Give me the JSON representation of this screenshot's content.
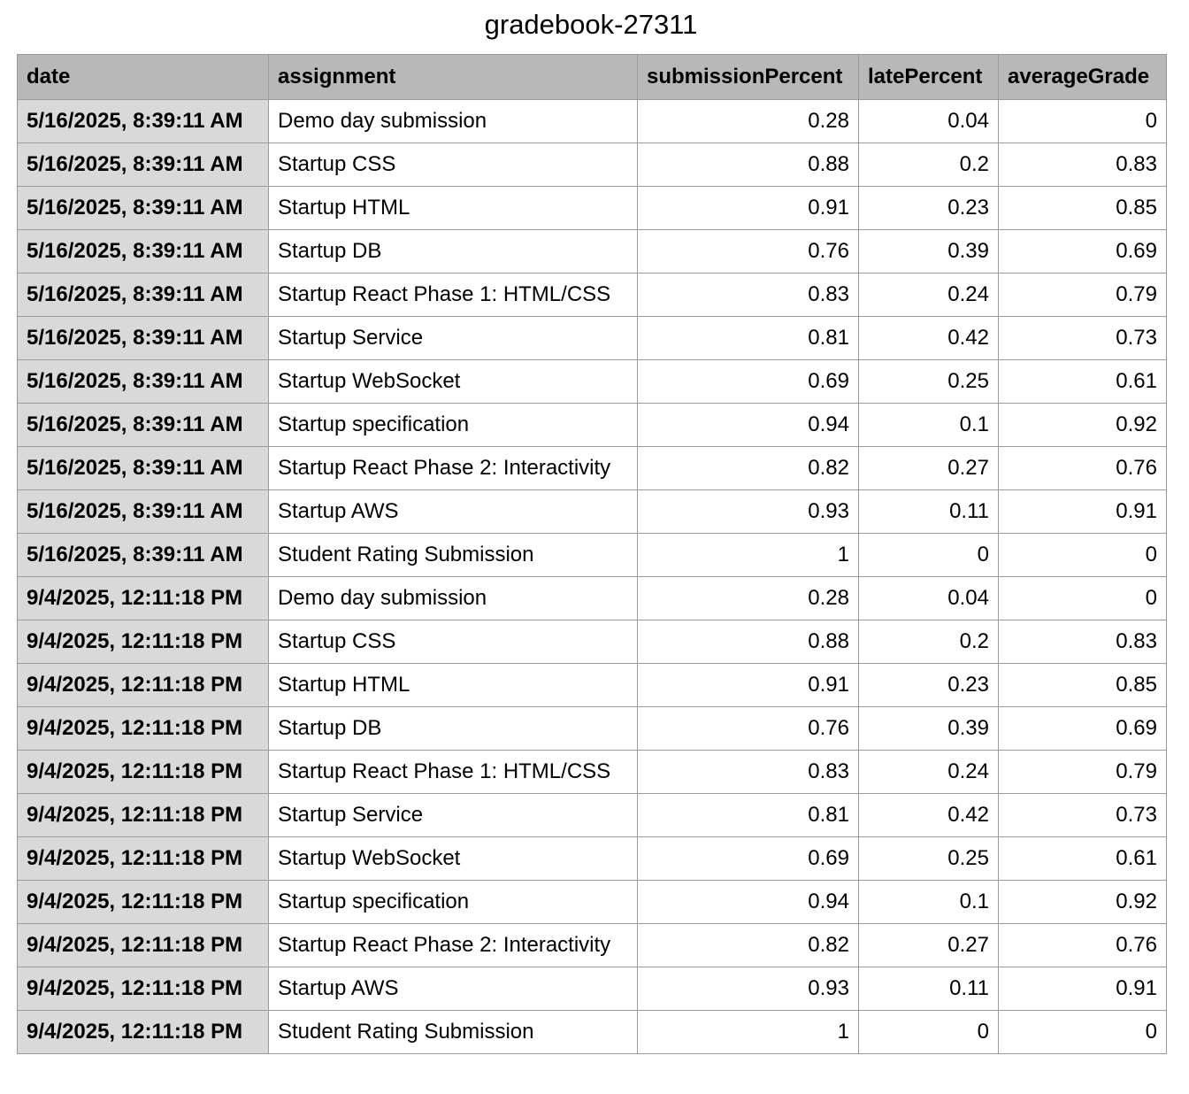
{
  "title": "gradebook-27311",
  "columns": [
    "date",
    "assignment",
    "submissionPercent",
    "latePercent",
    "averageGrade"
  ],
  "rows": [
    {
      "date": "5/16/2025, 8:39:11 AM",
      "assignment": "Demo day submission",
      "submissionPercent": "0.28",
      "latePercent": "0.04",
      "averageGrade": "0"
    },
    {
      "date": "5/16/2025, 8:39:11 AM",
      "assignment": "Startup CSS",
      "submissionPercent": "0.88",
      "latePercent": "0.2",
      "averageGrade": "0.83"
    },
    {
      "date": "5/16/2025, 8:39:11 AM",
      "assignment": "Startup HTML",
      "submissionPercent": "0.91",
      "latePercent": "0.23",
      "averageGrade": "0.85"
    },
    {
      "date": "5/16/2025, 8:39:11 AM",
      "assignment": "Startup DB",
      "submissionPercent": "0.76",
      "latePercent": "0.39",
      "averageGrade": "0.69"
    },
    {
      "date": "5/16/2025, 8:39:11 AM",
      "assignment": "Startup React Phase 1: HTML/CSS",
      "submissionPercent": "0.83",
      "latePercent": "0.24",
      "averageGrade": "0.79"
    },
    {
      "date": "5/16/2025, 8:39:11 AM",
      "assignment": "Startup Service",
      "submissionPercent": "0.81",
      "latePercent": "0.42",
      "averageGrade": "0.73"
    },
    {
      "date": "5/16/2025, 8:39:11 AM",
      "assignment": "Startup WebSocket",
      "submissionPercent": "0.69",
      "latePercent": "0.25",
      "averageGrade": "0.61"
    },
    {
      "date": "5/16/2025, 8:39:11 AM",
      "assignment": "Startup specification",
      "submissionPercent": "0.94",
      "latePercent": "0.1",
      "averageGrade": "0.92"
    },
    {
      "date": "5/16/2025, 8:39:11 AM",
      "assignment": "Startup React Phase 2: Interactivity",
      "submissionPercent": "0.82",
      "latePercent": "0.27",
      "averageGrade": "0.76"
    },
    {
      "date": "5/16/2025, 8:39:11 AM",
      "assignment": "Startup AWS",
      "submissionPercent": "0.93",
      "latePercent": "0.11",
      "averageGrade": "0.91"
    },
    {
      "date": "5/16/2025, 8:39:11 AM",
      "assignment": "Student Rating Submission",
      "submissionPercent": "1",
      "latePercent": "0",
      "averageGrade": "0"
    },
    {
      "date": "9/4/2025, 12:11:18 PM",
      "assignment": "Demo day submission",
      "submissionPercent": "0.28",
      "latePercent": "0.04",
      "averageGrade": "0"
    },
    {
      "date": "9/4/2025, 12:11:18 PM",
      "assignment": "Startup CSS",
      "submissionPercent": "0.88",
      "latePercent": "0.2",
      "averageGrade": "0.83"
    },
    {
      "date": "9/4/2025, 12:11:18 PM",
      "assignment": "Startup HTML",
      "submissionPercent": "0.91",
      "latePercent": "0.23",
      "averageGrade": "0.85"
    },
    {
      "date": "9/4/2025, 12:11:18 PM",
      "assignment": "Startup DB",
      "submissionPercent": "0.76",
      "latePercent": "0.39",
      "averageGrade": "0.69"
    },
    {
      "date": "9/4/2025, 12:11:18 PM",
      "assignment": "Startup React Phase 1: HTML/CSS",
      "submissionPercent": "0.83",
      "latePercent": "0.24",
      "averageGrade": "0.79"
    },
    {
      "date": "9/4/2025, 12:11:18 PM",
      "assignment": "Startup Service",
      "submissionPercent": "0.81",
      "latePercent": "0.42",
      "averageGrade": "0.73"
    },
    {
      "date": "9/4/2025, 12:11:18 PM",
      "assignment": "Startup WebSocket",
      "submissionPercent": "0.69",
      "latePercent": "0.25",
      "averageGrade": "0.61"
    },
    {
      "date": "9/4/2025, 12:11:18 PM",
      "assignment": "Startup specification",
      "submissionPercent": "0.94",
      "latePercent": "0.1",
      "averageGrade": "0.92"
    },
    {
      "date": "9/4/2025, 12:11:18 PM",
      "assignment": "Startup React Phase 2: Interactivity",
      "submissionPercent": "0.82",
      "latePercent": "0.27",
      "averageGrade": "0.76"
    },
    {
      "date": "9/4/2025, 12:11:18 PM",
      "assignment": "Startup AWS",
      "submissionPercent": "0.93",
      "latePercent": "0.11",
      "averageGrade": "0.91"
    },
    {
      "date": "9/4/2025, 12:11:18 PM",
      "assignment": "Student Rating Submission",
      "submissionPercent": "1",
      "latePercent": "0",
      "averageGrade": "0"
    }
  ]
}
